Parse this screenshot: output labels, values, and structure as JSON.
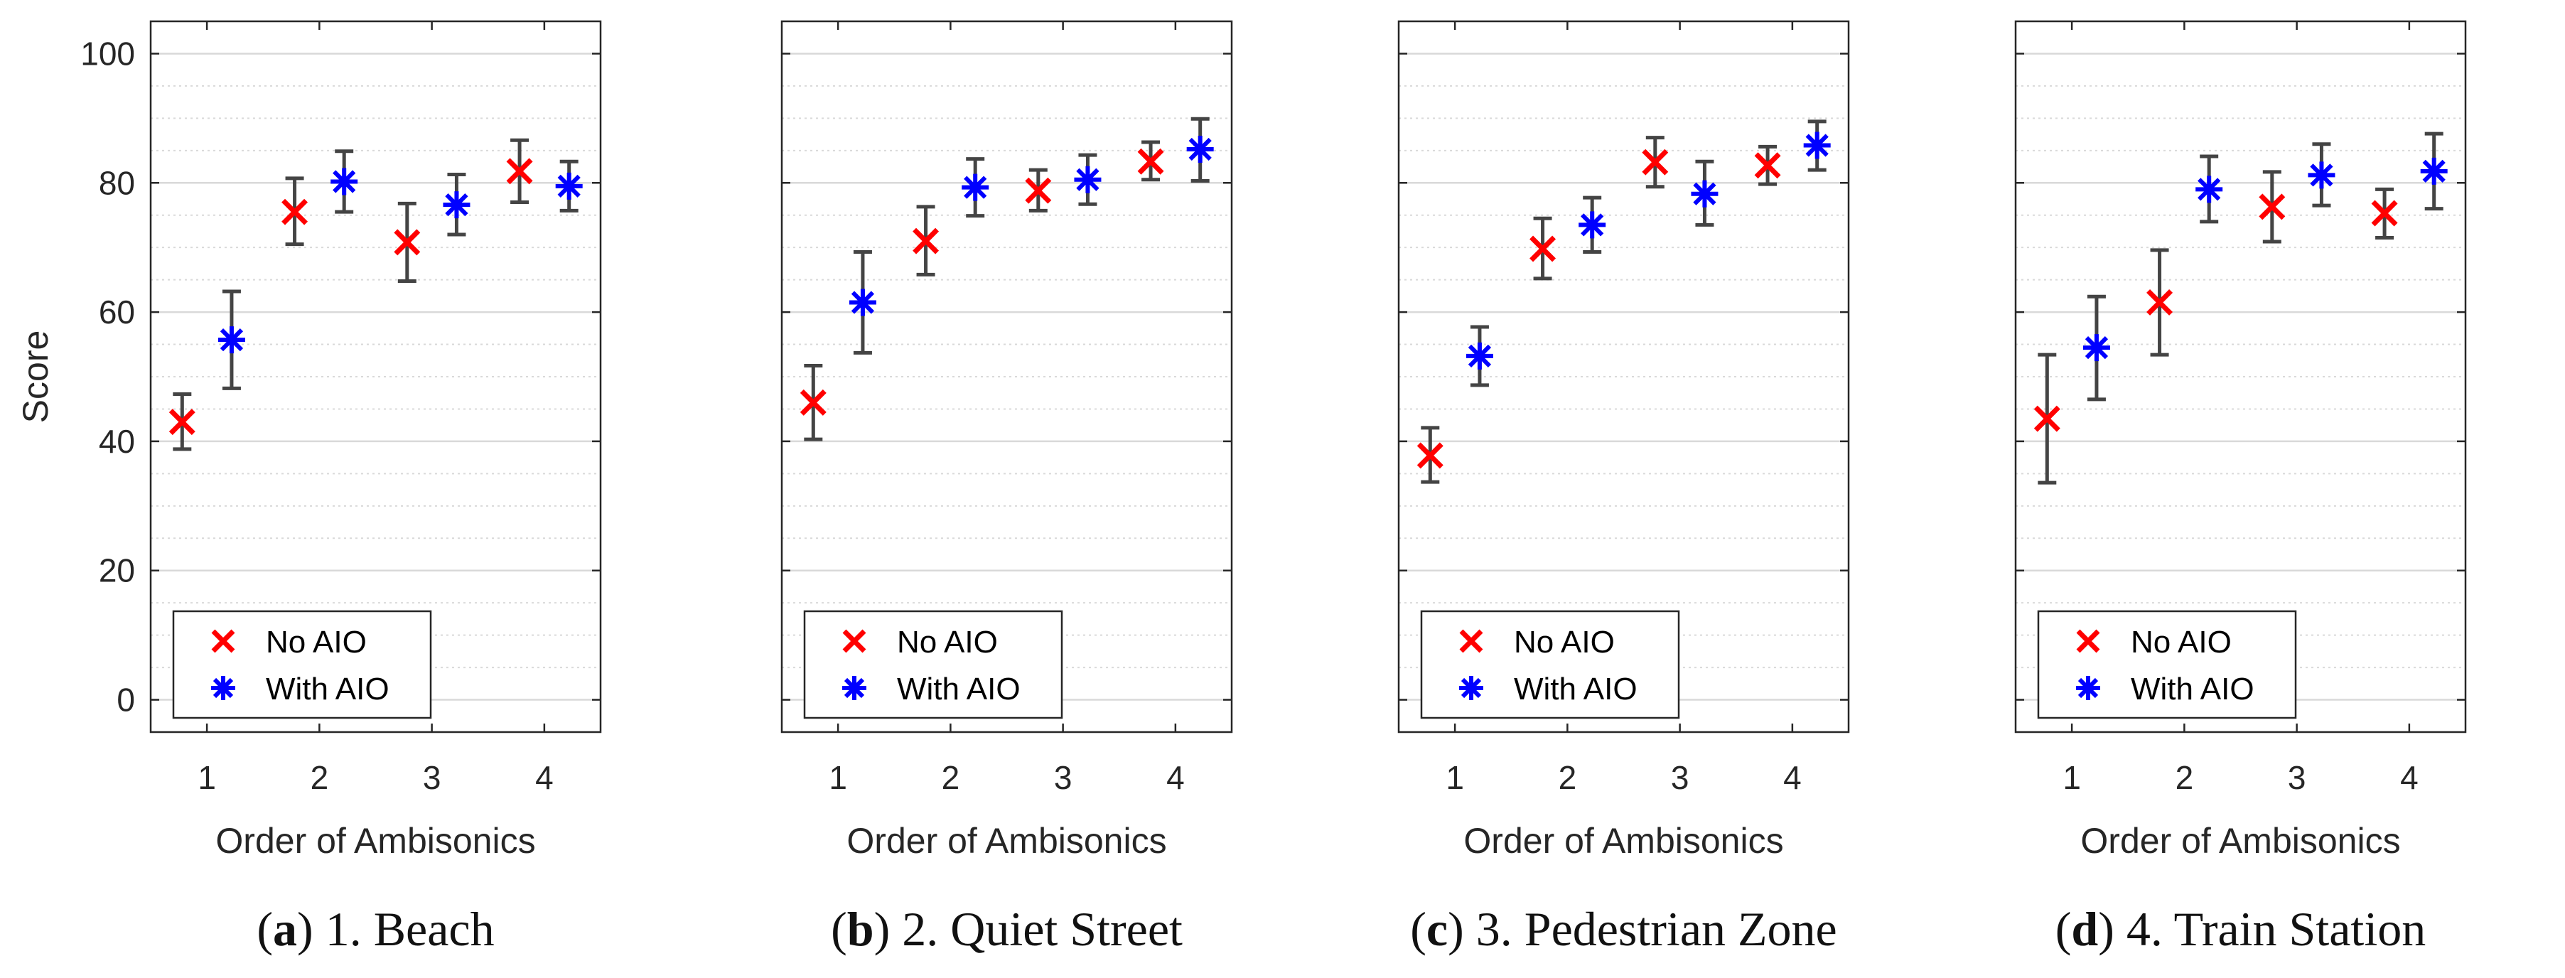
{
  "colors": {
    "no_aio": "#ff0000",
    "with_aio": "#0000ff",
    "errorbar": "#444444",
    "grid": "#d9d9d9",
    "axis": "#262626"
  },
  "shared": {
    "ylabel": "Score",
    "xlabel": "Order of Ambisonics",
    "legend": [
      "No AIO",
      "With AIO"
    ],
    "yticks": [
      "0",
      "20",
      "40",
      "60",
      "80",
      "100"
    ],
    "xticks": [
      "1",
      "2",
      "3",
      "4"
    ]
  },
  "chart_data": [
    {
      "type": "scatter",
      "caption_letter": "a",
      "caption_title": " 1. Beach",
      "xlabel": "Order of Ambisonics",
      "ylabel": "Score",
      "x": [
        1,
        2,
        3,
        4
      ],
      "xlim": [
        0.5,
        4.5
      ],
      "ylim": [
        -5,
        105
      ],
      "grid": "on",
      "legend_position": "bottom-left",
      "series": [
        {
          "name": "No AIO",
          "marker": "x",
          "y": [
            43,
            75.5,
            70.8,
            81.8
          ],
          "lower": [
            38.8,
            70.5,
            64.8,
            77.0
          ],
          "upper": [
            47.3,
            80.7,
            76.8,
            86.6
          ]
        },
        {
          "name": "With AIO",
          "marker": "asterisk",
          "y": [
            55.7,
            80.2,
            76.6,
            79.5
          ],
          "lower": [
            48.2,
            75.5,
            72.0,
            75.7
          ],
          "upper": [
            63.2,
            84.9,
            81.3,
            83.3
          ]
        }
      ]
    },
    {
      "type": "scatter",
      "caption_letter": "b",
      "caption_title": " 2. Quiet Street",
      "xlabel": "Order of Ambisonics",
      "ylabel": "",
      "x": [
        1,
        2,
        3,
        4
      ],
      "xlim": [
        0.5,
        4.5
      ],
      "ylim": [
        -5,
        105
      ],
      "grid": "on",
      "legend_position": "bottom-left",
      "series": [
        {
          "name": "No AIO",
          "marker": "x",
          "y": [
            46,
            71,
            78.8,
            83.3
          ],
          "lower": [
            40.3,
            65.8,
            75.7,
            80.5
          ],
          "upper": [
            51.7,
            76.3,
            82.0,
            86.3
          ]
        },
        {
          "name": "With AIO",
          "marker": "asterisk",
          "y": [
            61.5,
            79.3,
            80.5,
            85.2
          ],
          "lower": [
            53.7,
            74.9,
            76.7,
            80.3
          ],
          "upper": [
            69.3,
            83.7,
            84.3,
            89.9
          ]
        }
      ]
    },
    {
      "type": "scatter",
      "caption_letter": "c",
      "caption_title": " 3. Pedestrian Zone",
      "xlabel": "Order of Ambisonics",
      "ylabel": "",
      "x": [
        1,
        2,
        3,
        4
      ],
      "xlim": [
        0.5,
        4.5
      ],
      "ylim": [
        -5,
        105
      ],
      "grid": "on",
      "legend_position": "bottom-left",
      "series": [
        {
          "name": "No AIO",
          "marker": "x",
          "y": [
            37.8,
            69.8,
            83.2,
            82.7
          ],
          "lower": [
            33.7,
            65.2,
            79.4,
            79.8
          ],
          "upper": [
            42.1,
            74.5,
            87.0,
            85.6
          ]
        },
        {
          "name": "With AIO",
          "marker": "asterisk",
          "y": [
            53.2,
            73.5,
            78.3,
            85.8
          ],
          "lower": [
            48.7,
            69.3,
            73.5,
            82.0
          ],
          "upper": [
            57.7,
            77.7,
            83.3,
            89.5
          ]
        }
      ]
    },
    {
      "type": "scatter",
      "caption_letter": "d",
      "caption_title": " 4. Train Station",
      "xlabel": "Order of Ambisonics",
      "ylabel": "",
      "x": [
        1,
        2,
        3,
        4
      ],
      "xlim": [
        0.5,
        4.5
      ],
      "ylim": [
        -5,
        105
      ],
      "grid": "on",
      "legend_position": "bottom-left",
      "series": [
        {
          "name": "No AIO",
          "marker": "x",
          "y": [
            43.5,
            61.5,
            76.3,
            75.3
          ],
          "lower": [
            33.6,
            53.4,
            70.9,
            71.5
          ],
          "upper": [
            53.4,
            69.6,
            81.7,
            79.0
          ]
        },
        {
          "name": "With AIO",
          "marker": "asterisk",
          "y": [
            54.5,
            79,
            81.2,
            81.8
          ],
          "lower": [
            46.5,
            74.0,
            76.5,
            76.0
          ],
          "upper": [
            62.4,
            84.1,
            86.0,
            87.6
          ]
        }
      ]
    }
  ]
}
